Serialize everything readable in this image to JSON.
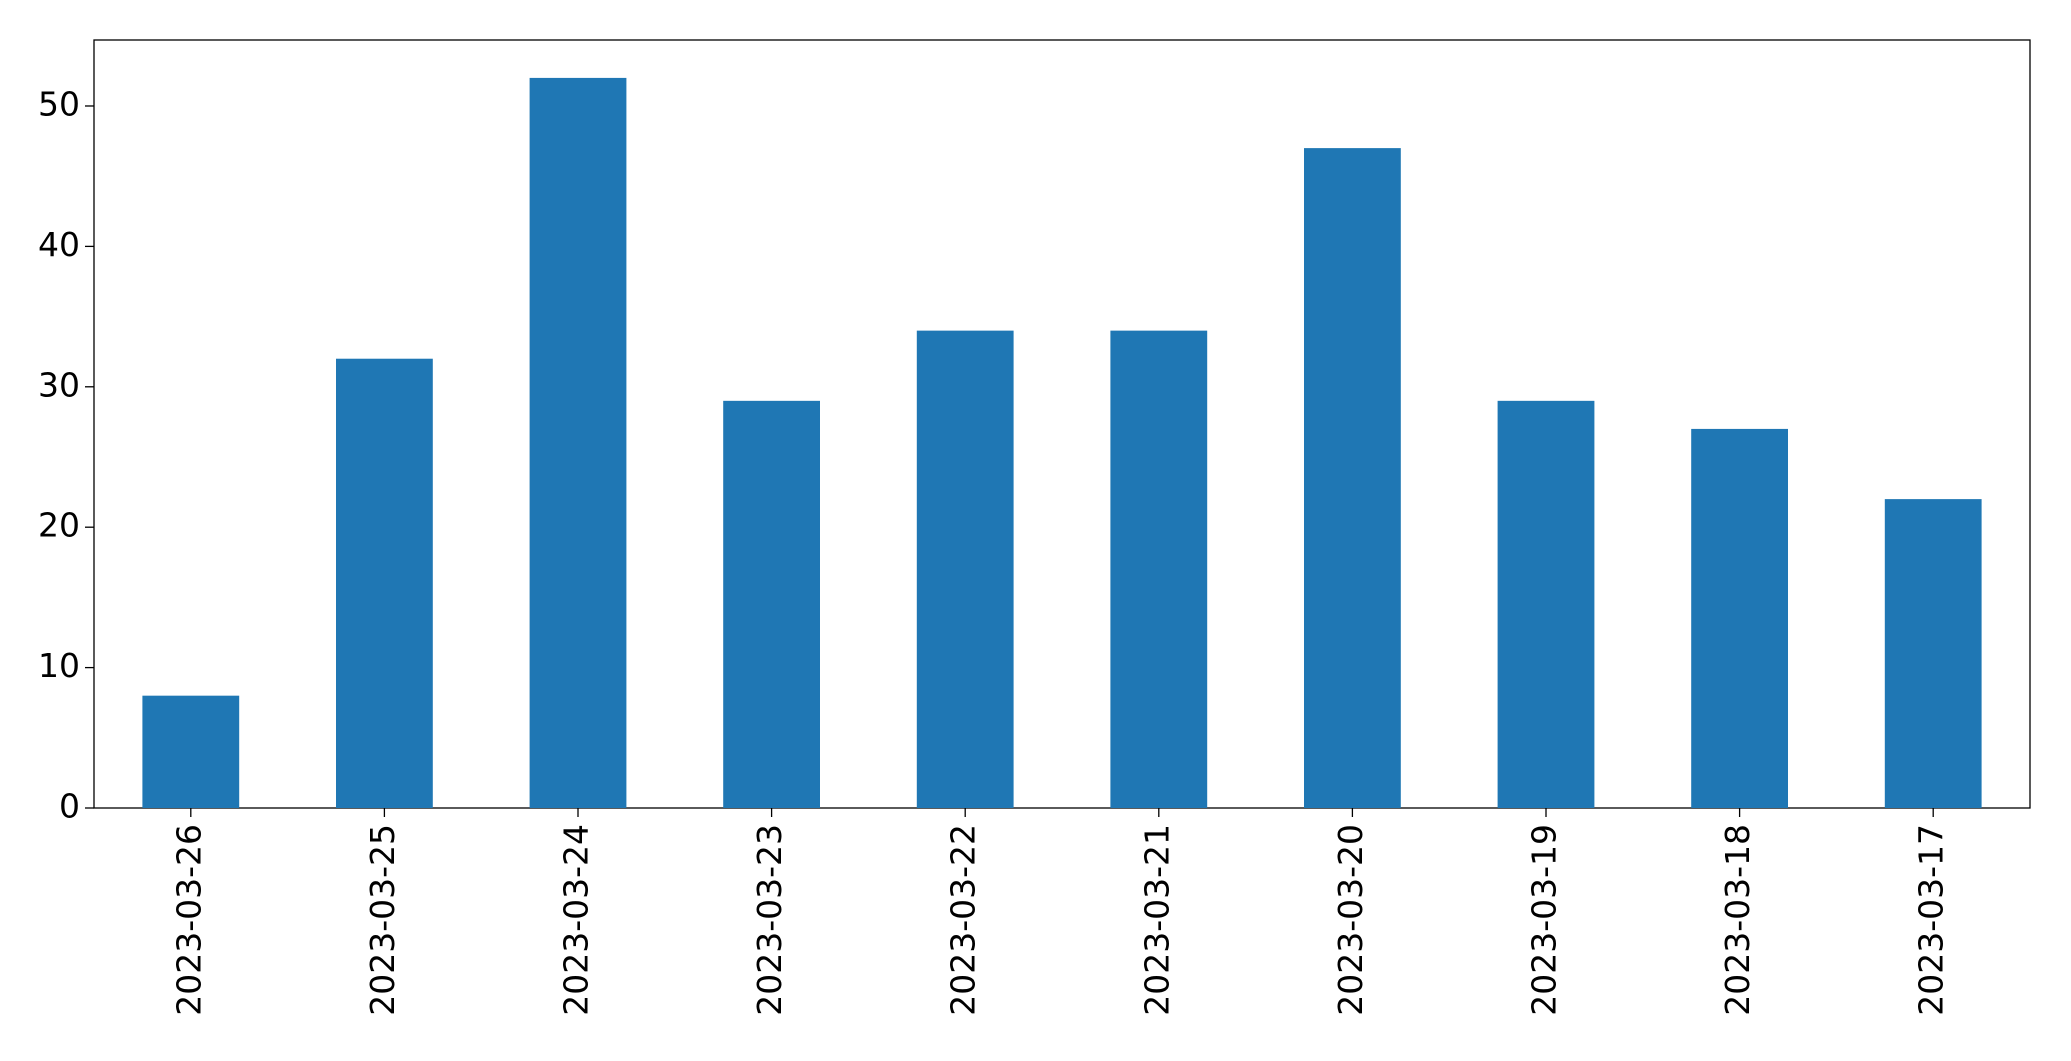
{
  "chart_data": {
    "type": "bar",
    "categories": [
      "2023-03-26",
      "2023-03-25",
      "2023-03-24",
      "2023-03-23",
      "2023-03-22",
      "2023-03-21",
      "2023-03-20",
      "2023-03-19",
      "2023-03-18",
      "2023-03-17"
    ],
    "values": [
      8,
      32,
      52,
      29,
      34,
      34,
      47,
      29,
      27,
      22
    ],
    "color": "#1f77b4",
    "ylim": [
      0,
      54.7
    ],
    "yticks": [
      0,
      10,
      20,
      30,
      40,
      50
    ],
    "grid": false
  }
}
